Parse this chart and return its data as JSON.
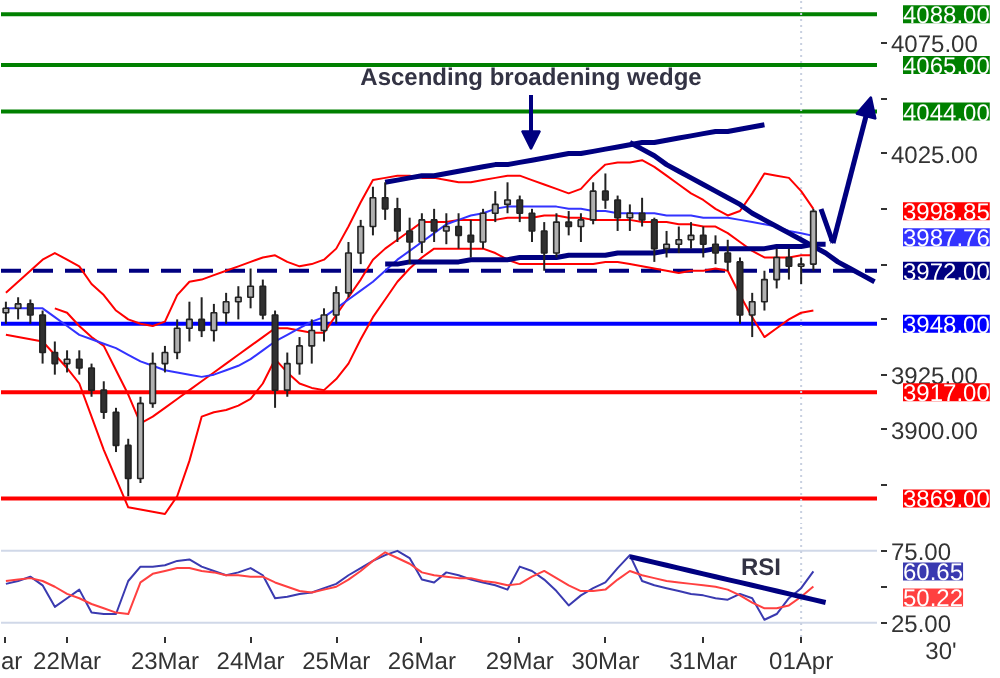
{
  "chart_data": [
    {
      "type": "candlestick",
      "tick_labels": "y",
      "ylim": [
        3857,
        4094
      ],
      "yticks": [
        {
          "value": 4075,
          "label": "4075.00"
        },
        {
          "value": 4050,
          "label": null
        },
        {
          "value": 4025,
          "label": "4025.00"
        },
        {
          "value": 4000,
          "label": null
        },
        {
          "value": 3975,
          "label": null
        },
        {
          "value": 3950,
          "label": null
        },
        {
          "value": 3925,
          "label": "3925.00"
        },
        {
          "value": 3900,
          "label": "3900.00"
        },
        {
          "value": 3875,
          "label": null
        }
      ],
      "categories": [
        "ar",
        null,
        null,
        null,
        null,
        "22Mar",
        null,
        null,
        null,
        null,
        null,
        null,
        null,
        "23Mar",
        null,
        null,
        null,
        null,
        null,
        null,
        "24Mar",
        null,
        null,
        null,
        null,
        null,
        null,
        "25Mar",
        null,
        null,
        null,
        null,
        null,
        null,
        "26Mar",
        null,
        null,
        null,
        null,
        null,
        null,
        null,
        "29Mar",
        null,
        null,
        null,
        null,
        null,
        null,
        "30Mar",
        null,
        null,
        null,
        null,
        null,
        null,
        null,
        "31Mar",
        null,
        null,
        null,
        null,
        null,
        null,
        null,
        "01Apr",
        null,
        null,
        null,
        null,
        null,
        null
      ],
      "ohlc": [
        [
          3953,
          3958,
          3948,
          3955
        ],
        [
          3955,
          3960,
          3950,
          3957
        ],
        [
          3957,
          3959,
          3948,
          3952
        ],
        [
          3952,
          3954,
          3930,
          3935
        ],
        [
          3935,
          3940,
          3925,
          3930
        ],
        [
          3930,
          3936,
          3926,
          3932
        ],
        [
          3932,
          3936,
          3925,
          3928
        ],
        [
          3928,
          3930,
          3915,
          3918
        ],
        [
          3918,
          3922,
          3905,
          3908
        ],
        [
          3908,
          3910,
          3890,
          3893
        ],
        [
          3893,
          3896,
          3870,
          3878
        ],
        [
          3878,
          3915,
          3876,
          3912
        ],
        [
          3912,
          3935,
          3910,
          3930
        ],
        [
          3930,
          3938,
          3926,
          3935
        ],
        [
          3935,
          3950,
          3932,
          3946
        ],
        [
          3946,
          3958,
          3940,
          3950
        ],
        [
          3950,
          3960,
          3942,
          3945
        ],
        [
          3945,
          3957,
          3940,
          3953
        ],
        [
          3953,
          3962,
          3948,
          3958
        ],
        [
          3958,
          3965,
          3950,
          3960
        ],
        [
          3960,
          3973,
          3955,
          3965
        ],
        [
          3965,
          3968,
          3950,
          3952
        ],
        [
          3952,
          3954,
          3910,
          3918
        ],
        [
          3918,
          3935,
          3915,
          3930
        ],
        [
          3930,
          3942,
          3925,
          3938
        ],
        [
          3938,
          3950,
          3930,
          3945
        ],
        [
          3945,
          3955,
          3940,
          3952
        ],
        [
          3952,
          3965,
          3948,
          3962
        ],
        [
          3962,
          3985,
          3960,
          3980
        ],
        [
          3980,
          3995,
          3975,
          3992
        ],
        [
          3992,
          4010,
          3988,
          4005
        ],
        [
          4005,
          4012,
          3995,
          4000
        ],
        [
          4000,
          4005,
          3985,
          3990
        ],
        [
          3990,
          3996,
          3975,
          3985
        ],
        [
          3985,
          3998,
          3980,
          3995
        ],
        [
          3995,
          4000,
          3985,
          3990
        ],
        [
          3990,
          3998,
          3984,
          3992
        ],
        [
          3992,
          3998,
          3982,
          3988
        ],
        [
          3988,
          3995,
          3978,
          3985
        ],
        [
          3985,
          4000,
          3982,
          3998
        ],
        [
          3998,
          4008,
          3994,
          4002
        ],
        [
          4002,
          4012,
          3998,
          4004
        ],
        [
          4004,
          4006,
          3994,
          3998
        ],
        [
          3998,
          4000,
          3985,
          3990
        ],
        [
          3990,
          3994,
          3972,
          3980
        ],
        [
          3980,
          3998,
          3978,
          3994
        ],
        [
          3994,
          3999,
          3988,
          3992
        ],
        [
          3992,
          3998,
          3985,
          3995
        ],
        [
          3995,
          4012,
          3993,
          4008
        ],
        [
          4008,
          4016,
          4000,
          4004
        ],
        [
          4004,
          4006,
          3990,
          3996
        ],
        [
          3996,
          4002,
          3990,
          3998
        ],
        [
          3998,
          4005,
          3992,
          3995
        ],
        [
          3995,
          3996,
          3976,
          3982
        ],
        [
          3982,
          3990,
          3978,
          3984
        ],
        [
          3984,
          3992,
          3980,
          3986
        ],
        [
          3986,
          3994,
          3982,
          3988
        ],
        [
          3988,
          3992,
          3978,
          3984
        ],
        [
          3984,
          3988,
          3975,
          3980
        ],
        [
          3980,
          3986,
          3972,
          3976
        ],
        [
          3976,
          3978,
          3948,
          3952
        ],
        [
          3952,
          3962,
          3942,
          3958
        ],
        [
          3958,
          3972,
          3954,
          3968
        ],
        [
          3968,
          3982,
          3964,
          3978
        ],
        [
          3978,
          3982,
          3968,
          3974
        ],
        [
          3974,
          3978,
          3966,
          3975
        ],
        [
          3975,
          4000,
          3972,
          3998.85
        ],
        null,
        null,
        null,
        null,
        null
      ],
      "series": [
        {
          "type": "line",
          "color": "#ff0000",
          "values": [
            3962,
            3967,
            3972,
            3977,
            3980,
            3977,
            3974,
            3966,
            3961,
            3954,
            3950,
            3948,
            3947,
            3949,
            3961,
            3967,
            3968,
            3970,
            3972,
            3974,
            3976,
            3978,
            3979,
            3976,
            3974,
            3975,
            3977,
            3982,
            3992,
            4003,
            4013,
            4014,
            4015,
            4015,
            4014,
            4014,
            4013,
            4012,
            4012,
            4013,
            4014,
            4015,
            4015,
            4013,
            4011,
            4009,
            4007,
            4009,
            4015,
            4020,
            4021,
            4021,
            4022,
            4019,
            4015,
            4011,
            4007,
            4004,
            4000,
            3997,
            3999,
            4007,
            4016,
            4015,
            4014,
            4008,
            4000,
            null,
            null,
            null,
            null,
            null
          ]
        },
        {
          "type": "line",
          "color": "#ff0000",
          "values": [
            null,
            null,
            null,
            null,
            3955,
            3953,
            3947,
            3942,
            3938,
            3927,
            3916,
            3903,
            3906,
            3910,
            3914,
            3918,
            3922,
            3926,
            3930,
            3934,
            3938,
            3942,
            3946,
            3946,
            3945,
            3944,
            3944,
            3952,
            3960,
            3968,
            3977,
            3982,
            3986,
            3990,
            3994,
            3994,
            3994,
            3995,
            3995,
            3995,
            3995,
            3996,
            3996,
            3996,
            3997,
            3997,
            3996,
            3996,
            3995,
            3995,
            3995,
            3995,
            3994,
            3994,
            3994,
            3993,
            3993,
            3992,
            3992,
            3989,
            3985,
            3981,
            3978,
            3978,
            3978,
            3979,
            3979,
            null,
            null,
            null,
            null,
            null
          ]
        },
        {
          "type": "line",
          "color": "#ff0000",
          "values": [
            3943,
            3942,
            3941,
            3940,
            3934,
            3928,
            3921,
            3906,
            3891,
            3878,
            3865,
            3864,
            3863,
            3862,
            3870,
            3886,
            3906,
            3908,
            3909,
            3911,
            3914,
            3921,
            3932,
            3926,
            3921,
            3919,
            3918,
            3923,
            3930,
            3941,
            3951,
            3959,
            3967,
            3973,
            3978,
            3982,
            3982,
            3982,
            3982,
            3982,
            3980,
            3977,
            3975,
            3975,
            3975,
            3975,
            3975,
            3975,
            3975,
            3976,
            3976,
            3975,
            3974,
            3973,
            3972,
            3971,
            3972,
            3972,
            3973,
            3972,
            3961,
            3951,
            3942,
            3946,
            3950,
            3953,
            3954,
            null,
            null,
            null,
            null,
            null
          ]
        },
        {
          "type": "line",
          "color": "#3333ff",
          "values": [
            3955,
            3955,
            3955,
            3955,
            3951,
            3947,
            3943,
            3941,
            3939,
            3937,
            3934,
            3931,
            3929,
            3927,
            3926,
            3925,
            3924,
            3925,
            3927,
            3929,
            3932,
            3936,
            3940,
            3943,
            3946,
            3949,
            3951,
            3955,
            3959,
            3963,
            3967,
            3972,
            3977,
            3981,
            3985,
            3989,
            3993,
            3995,
            3997,
            3998,
            4000,
            4001,
            4001,
            4001,
            4001,
            4001,
            4000,
            4000,
            3999,
            3999,
            3998,
            3998,
            3998,
            3998,
            3997,
            3997,
            3997,
            3996,
            3996,
            3996,
            3995,
            3994,
            3993,
            3992,
            3990,
            3989,
            3987.76,
            null,
            null,
            null,
            null,
            null
          ]
        },
        {
          "type": "line",
          "color": "#000080",
          "values": [
            null,
            null,
            null,
            null,
            null,
            null,
            null,
            null,
            null,
            null,
            null,
            null,
            null,
            null,
            null,
            null,
            null,
            null,
            null,
            null,
            null,
            null,
            null,
            null,
            null,
            null,
            null,
            null,
            null,
            null,
            null,
            4012,
            4013,
            4014,
            4015,
            4015,
            4016,
            4017,
            4018,
            4019,
            4020,
            4020,
            4021,
            4022,
            4023,
            4024,
            4025,
            4025,
            4026,
            4027,
            4028,
            4029,
            4030,
            4030,
            4031,
            4032,
            4033,
            4034,
            4035,
            4035,
            4036,
            4037,
            4038,
            null,
            null,
            null,
            null,
            null,
            null,
            null,
            null,
            null
          ]
        },
        {
          "type": "line",
          "color": "#000080",
          "values": [
            null,
            null,
            null,
            null,
            null,
            null,
            null,
            null,
            null,
            null,
            null,
            null,
            null,
            null,
            null,
            null,
            null,
            null,
            null,
            null,
            null,
            null,
            null,
            null,
            null,
            null,
            null,
            null,
            null,
            null,
            null,
            3975,
            3975,
            3976,
            3976,
            3976,
            3976,
            3976,
            3977,
            3977,
            3977,
            3977,
            3978,
            3978,
            3978,
            3978,
            3979,
            3979,
            3979,
            3979,
            3980,
            3980,
            3980,
            3980,
            3981,
            3981,
            3981,
            3981,
            3982,
            3982,
            3982,
            3982,
            3982,
            3983,
            3983,
            3983,
            3984,
            3984,
            null,
            null,
            null,
            null
          ]
        },
        {
          "type": "line",
          "color": "#000080",
          "values": [
            null,
            null,
            null,
            null,
            null,
            null,
            null,
            null,
            null,
            null,
            null,
            null,
            null,
            null,
            null,
            null,
            null,
            null,
            null,
            null,
            null,
            null,
            null,
            null,
            null,
            null,
            null,
            null,
            null,
            null,
            null,
            null,
            null,
            null,
            null,
            null,
            null,
            null,
            null,
            null,
            null,
            null,
            null,
            null,
            null,
            null,
            null,
            null,
            null,
            null,
            null,
            4030,
            4027,
            4024,
            4020,
            4017,
            4014,
            4011,
            4008,
            4005,
            4002,
            3998,
            3995,
            3992,
            3989,
            3986,
            3983,
            3980,
            3976,
            3973,
            3970,
            3967
          ]
        }
      ],
      "ref_lines": [
        {
          "axis": "y",
          "value": 4088,
          "label": "4088.00",
          "color": "#008000"
        },
        {
          "axis": "y",
          "value": 4065,
          "label": "4065.00",
          "color": "#008000"
        },
        {
          "axis": "y",
          "value": 4044,
          "label": "4044.00",
          "color": "#008000"
        },
        {
          "axis": "y",
          "value": 3972,
          "label": "3972.00",
          "color": "#000080",
          "line_style": "dashed"
        },
        {
          "axis": "y",
          "value": 3948,
          "label": "3948.00",
          "color": "#0000ff"
        },
        {
          "axis": "y",
          "value": 3917,
          "label": "3917.00",
          "color": "#ff0000"
        },
        {
          "axis": "y",
          "value": 3869,
          "label": "3869.00",
          "color": "#ff0000"
        },
        {
          "axis": "x",
          "value": "01Apr",
          "color": "#c8d0e0",
          "line_style": "dotted"
        }
      ],
      "annotations": [
        {
          "text": "Ascending broadening wedge",
          "y": 4027
        },
        "3998.85",
        "3987.76"
      ]
    },
    {
      "type": "line",
      "ylim": [
        15,
        93
      ],
      "xlabel": "30'",
      "categories": [
        "ar",
        null,
        null,
        null,
        null,
        "22Mar",
        null,
        null,
        null,
        null,
        null,
        null,
        null,
        "23Mar",
        null,
        null,
        null,
        null,
        null,
        null,
        "24Mar",
        null,
        null,
        null,
        null,
        null,
        null,
        "25Mar",
        null,
        null,
        null,
        null,
        null,
        null,
        "26Mar",
        null,
        null,
        null,
        null,
        null,
        null,
        null,
        "29Mar",
        null,
        null,
        null,
        null,
        null,
        null,
        "30Mar",
        null,
        null,
        null,
        null,
        null,
        null,
        null,
        "31Mar",
        null,
        null,
        null,
        null,
        null,
        null,
        null,
        "01Apr",
        null,
        null,
        null,
        null,
        null,
        null
      ],
      "yticks": [
        {
          "value": 75,
          "label": "75.00"
        },
        {
          "value": 50,
          "label": null
        },
        {
          "value": 25,
          "label": "25.00"
        }
      ],
      "series": [
        {
          "color": "#3a3ab0",
          "values": [
            52,
            54,
            57,
            51,
            36,
            42,
            48,
            32,
            31,
            31,
            54,
            64,
            64,
            65,
            68,
            69,
            64,
            61,
            58,
            60,
            63,
            58,
            42,
            43,
            45,
            46,
            49,
            52,
            58,
            63,
            68,
            72,
            75,
            70,
            55,
            53,
            60,
            58,
            55,
            53,
            51,
            48,
            64,
            61,
            55,
            47,
            37,
            44,
            49,
            53,
            63,
            72,
            54,
            51,
            49,
            47,
            45,
            44,
            42,
            41,
            45,
            42,
            27,
            31,
            42,
            49,
            60.65,
            null,
            null,
            null,
            null,
            null
          ]
        },
        {
          "color": "#ff4040",
          "values": [
            54,
            55,
            56,
            54,
            50,
            45,
            42,
            38,
            35,
            32,
            31,
            53,
            59,
            61,
            63,
            63,
            61,
            60,
            58,
            58,
            57,
            57,
            53,
            50,
            47,
            46,
            48,
            50,
            55,
            61,
            68,
            74,
            70,
            66,
            60,
            58,
            57,
            56,
            56,
            54,
            53,
            51,
            52,
            57,
            61,
            56,
            51,
            47,
            47,
            48,
            55,
            61,
            58,
            56,
            54,
            53,
            52,
            51,
            50,
            48,
            44,
            39,
            35,
            35,
            37,
            43,
            50.22,
            null,
            null,
            null,
            null,
            null
          ]
        },
        {
          "color": "#000080",
          "values": [
            null,
            null,
            null,
            null,
            null,
            null,
            null,
            null,
            null,
            null,
            null,
            null,
            null,
            null,
            null,
            null,
            null,
            null,
            null,
            null,
            null,
            null,
            null,
            null,
            null,
            null,
            null,
            null,
            null,
            null,
            null,
            null,
            null,
            null,
            null,
            null,
            null,
            null,
            null,
            null,
            null,
            null,
            null,
            null,
            null,
            null,
            null,
            null,
            null,
            null,
            null,
            71,
            69,
            67,
            65,
            63,
            61,
            59,
            57,
            55,
            53,
            51,
            49,
            47,
            45,
            43,
            41,
            39,
            null,
            null,
            null,
            null
          ]
        }
      ],
      "ref_lines": [
        {
          "axis": "y",
          "value": 75,
          "color": "#d0d8e8"
        },
        {
          "axis": "y",
          "value": 25,
          "color": "#d0d8e8"
        },
        {
          "axis": "x",
          "value": "01Apr",
          "color": "#c8d0e0",
          "line_style": "dotted"
        }
      ],
      "annotations": [
        "RSI",
        "60.65",
        "50.22"
      ]
    }
  ]
}
